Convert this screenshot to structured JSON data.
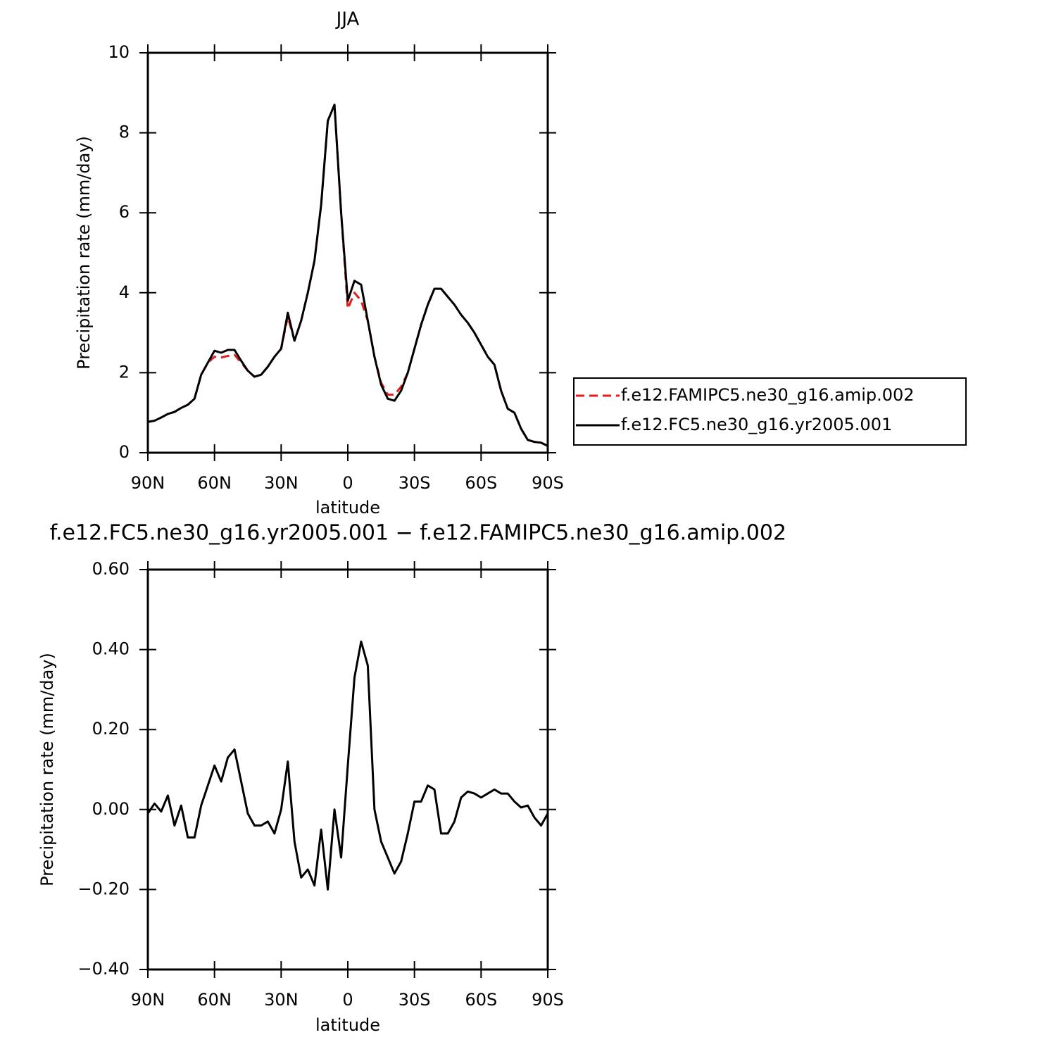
{
  "chart_data": [
    {
      "type": "line",
      "title": "JJA",
      "xlabel": "latitude",
      "ylabel": "Precipitation rate (mm/day)",
      "x": [
        90,
        87,
        84,
        81,
        78,
        75,
        72,
        69,
        66,
        63,
        60,
        57,
        54,
        51,
        48,
        45,
        42,
        39,
        36,
        33,
        30,
        27,
        24,
        21,
        18,
        15,
        12,
        9,
        6,
        3,
        0,
        -3,
        -6,
        -9,
        -12,
        -15,
        -18,
        -21,
        -24,
        -27,
        -30,
        -33,
        -36,
        -39,
        -42,
        -45,
        -48,
        -51,
        -54,
        -57,
        -60,
        -63,
        -66,
        -69,
        -72,
        -75,
        -78,
        -81,
        -84,
        -87,
        -90
      ],
      "series": [
        {
          "name": "f.e12.FAMIPC5.ne30_g16.amip.002",
          "color": "#e41a1c",
          "linestyle": "dashed",
          "values": [
            0.77,
            0.8,
            0.88,
            0.97,
            1.02,
            1.12,
            1.2,
            1.35,
            1.95,
            2.25,
            2.4,
            2.38,
            2.42,
            2.45,
            2.25,
            2.05,
            1.9,
            1.95,
            2.15,
            2.4,
            2.6,
            3.4,
            2.8,
            3.3,
            4.0,
            4.8,
            6.2,
            8.3,
            8.7,
            6.0,
            3.6,
            4.0,
            3.8,
            3.3,
            2.4,
            1.75,
            1.45,
            1.45,
            1.65,
            2.0,
            2.6,
            3.2,
            3.7,
            4.1,
            4.1,
            3.9,
            3.7,
            3.45,
            3.25,
            3.0,
            2.7,
            2.4,
            2.2,
            1.55,
            1.1,
            1.0,
            0.6,
            0.32,
            0.27,
            0.25,
            0.17
          ]
        },
        {
          "name": "f.e12.FC5.ne30_g16.yr2005.001",
          "color": "#000000",
          "linestyle": "solid",
          "values": [
            0.77,
            0.8,
            0.88,
            0.97,
            1.02,
            1.12,
            1.2,
            1.35,
            1.95,
            2.25,
            2.55,
            2.5,
            2.57,
            2.57,
            2.3,
            2.05,
            1.9,
            1.95,
            2.15,
            2.4,
            2.6,
            3.5,
            2.8,
            3.3,
            4.0,
            4.8,
            6.2,
            8.3,
            8.7,
            6.0,
            3.8,
            4.3,
            4.2,
            3.3,
            2.4,
            1.7,
            1.35,
            1.3,
            1.55,
            2.0,
            2.6,
            3.2,
            3.7,
            4.1,
            4.1,
            3.9,
            3.7,
            3.45,
            3.25,
            3.0,
            2.7,
            2.4,
            2.2,
            1.55,
            1.1,
            1.0,
            0.6,
            0.32,
            0.27,
            0.25,
            0.17
          ]
        }
      ],
      "legend": "right",
      "xlim": [
        90,
        -90
      ],
      "xticks": [
        {
          "value": 90,
          "label": "90N"
        },
        {
          "value": 60,
          "label": "60N"
        },
        {
          "value": 30,
          "label": "30N"
        },
        0,
        {
          "value": -30,
          "label": "30S"
        },
        {
          "value": -60,
          "label": "60S"
        },
        {
          "value": -90,
          "label": "90S"
        }
      ],
      "ylim": [
        0,
        10
      ],
      "yticks": [
        0,
        2,
        4,
        6,
        8,
        10
      ]
    },
    {
      "type": "line",
      "title": "f.e12.FC5.ne30_g16.yr2005.001 − f.e12.FAMIPC5.ne30_g16.amip.002",
      "xlabel": "latitude",
      "ylabel": "Precipitation rate (mm/day)",
      "x": [
        90,
        87,
        84,
        81,
        78,
        75,
        72,
        69,
        66,
        63,
        60,
        57,
        54,
        51,
        48,
        45,
        42,
        39,
        36,
        33,
        30,
        27,
        24,
        21,
        18,
        15,
        12,
        9,
        6,
        3,
        0,
        -3,
        -6,
        -9,
        -12,
        -15,
        -18,
        -21,
        -24,
        -27,
        -30,
        -33,
        -36,
        -39,
        -42,
        -45,
        -48,
        -51,
        -54,
        -57,
        -60,
        -63,
        -66,
        -69,
        -72,
        -75,
        -78,
        -81,
        -84,
        -87,
        -90
      ],
      "values": [
        -0.01,
        0.015,
        -0.005,
        0.035,
        -0.04,
        0.01,
        -0.07,
        -0.07,
        0.01,
        0.06,
        0.11,
        0.07,
        0.13,
        0.15,
        0.07,
        -0.01,
        -0.04,
        -0.04,
        -0.03,
        -0.06,
        0.0,
        0.12,
        -0.08,
        -0.17,
        -0.15,
        -0.19,
        -0.05,
        -0.2,
        0.0,
        -0.12,
        0.11,
        0.33,
        0.42,
        0.36,
        0.0,
        -0.08,
        -0.12,
        -0.16,
        -0.13,
        -0.06,
        0.02,
        0.02,
        0.06,
        0.05,
        -0.06,
        -0.06,
        -0.03,
        0.03,
        0.045,
        0.04,
        0.03,
        0.04,
        0.05,
        0.04,
        0.04,
        0.02,
        0.005,
        0.01,
        -0.02,
        -0.04,
        -0.01
      ],
      "color": "#000000",
      "xlim": [
        90,
        -90
      ],
      "xticks": [
        {
          "value": 90,
          "label": "90N"
        },
        {
          "value": 60,
          "label": "60N"
        },
        {
          "value": 30,
          "label": "30N"
        },
        0,
        {
          "value": -30,
          "label": "30S"
        },
        {
          "value": -60,
          "label": "60S"
        },
        {
          "value": -90,
          "label": "90S"
        }
      ],
      "ylim": [
        -0.4,
        0.6
      ],
      "yticks": [
        {
          "value": -0.4,
          "label": "−0.40"
        },
        {
          "value": -0.2,
          "label": "−0.20"
        },
        {
          "value": 0,
          "label": "0.00"
        },
        {
          "value": 0.2,
          "label": "0.20"
        },
        {
          "value": 0.4,
          "label": "0.40"
        },
        {
          "value": 0.6,
          "label": "0.60"
        }
      ]
    }
  ]
}
